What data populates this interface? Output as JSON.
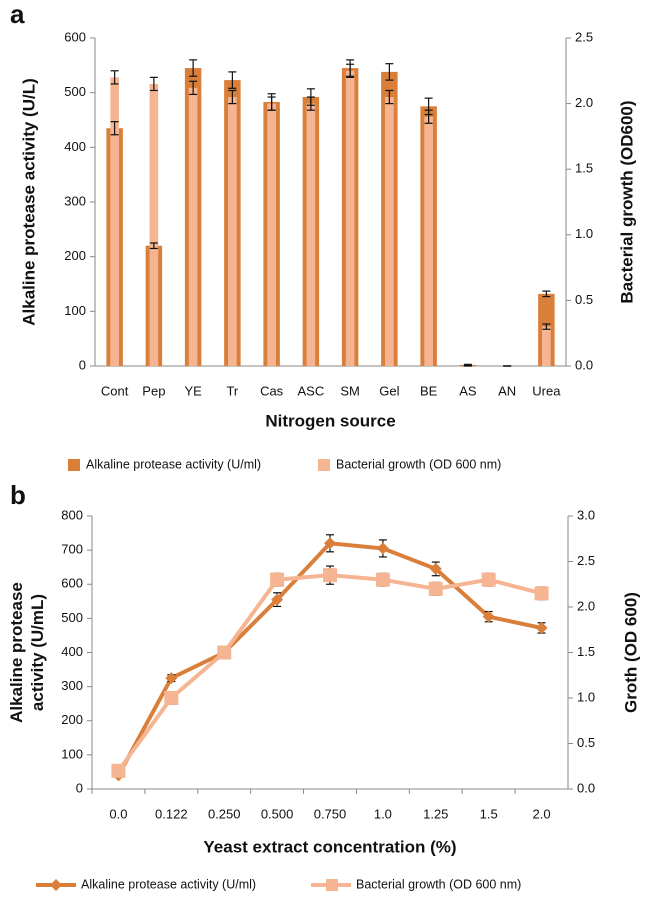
{
  "chart_data": [
    {
      "type": "bar",
      "label": "a",
      "xlabel": "Nitrogen source",
      "ylabel": [
        "Alkaline protease activity (U/L)"
      ],
      "y2label": "Bacterial growth (OD600)",
      "categories": [
        "Cont",
        "Pep",
        "YE",
        "Tr",
        "Cas",
        "ASC",
        "SM",
        "Gel",
        "BE",
        "AS",
        "AN",
        "Urea"
      ],
      "series": [
        {
          "name": "Alkaline protease activity (U/ml)",
          "color": "#d97f3a",
          "values": [
            435,
            220,
            545,
            523,
            483,
            492,
            545,
            538,
            475,
            2,
            0,
            132
          ],
          "errors": [
            12,
            5,
            15,
            15,
            15,
            15,
            15,
            15,
            15,
            1,
            0,
            5
          ]
        },
        {
          "name": "Bacterial growth (OD 600 nm)",
          "color": "#f6b592",
          "axis": "y2",
          "values": [
            2.2,
            2.15,
            2.12,
            2.05,
            2.0,
            2.0,
            2.25,
            2.05,
            1.9,
            0,
            0,
            0.3
          ],
          "errors": [
            0.05,
            0.05,
            0.05,
            0.05,
            0.05,
            0.05,
            0.05,
            0.05,
            0.05,
            0,
            0,
            0.02
          ]
        }
      ],
      "ylim": [
        0,
        600
      ],
      "yticks": [
        0,
        100,
        200,
        300,
        400,
        500,
        600
      ],
      "y2lim": [
        0,
        2.5
      ],
      "y2ticks": [
        {
          "value": 0,
          "label": "0.0"
        },
        0.5,
        {
          "value": 1,
          "label": "1.0"
        },
        1.5,
        {
          "value": 2,
          "label": "2.0"
        },
        2.5
      ]
    },
    {
      "type": "line",
      "label": "b",
      "xlabel": "Yeast extract concentration (%)",
      "ylabel": [
        "Alkaline protease",
        "activity (U/mL)"
      ],
      "y2label": "Groth (OD 600)",
      "categories": [
        "0.0",
        "0.122",
        "0.250",
        "0.500",
        "0.750",
        "1.0",
        "1.25",
        "1.5",
        "2.0"
      ],
      "series": [
        {
          "name": "Alkaline protease activity (U/ml)",
          "color": "#d97f3a",
          "marker": "diamond",
          "values": [
            40,
            325,
            400,
            555,
            720,
            705,
            645,
            505,
            472
          ],
          "errors": [
            5,
            10,
            10,
            20,
            25,
            25,
            20,
            15,
            15
          ]
        },
        {
          "name": "Bacterial growth (OD 600 nm)",
          "color": "#f6b592",
          "marker": "square",
          "axis": "y2",
          "values": [
            0.2,
            1.0,
            1.5,
            2.3,
            2.35,
            2.3,
            2.2,
            2.3,
            2.15
          ],
          "errors": [
            0.03,
            0.03,
            0.03,
            0.07,
            0.1,
            0.07,
            0.07,
            0.07,
            0.07
          ]
        }
      ],
      "ylim": [
        0,
        800
      ],
      "yticks": [
        0,
        100,
        200,
        300,
        400,
        500,
        600,
        700,
        800
      ],
      "y2lim": [
        0,
        3
      ],
      "y2ticks": [
        {
          "value": 0,
          "label": "0.0"
        },
        0.5,
        {
          "value": 1,
          "label": "1.0"
        },
        1.5,
        {
          "value": 2,
          "label": "2.0"
        },
        2.5,
        {
          "value": 3,
          "label": "3.0"
        }
      ]
    }
  ]
}
